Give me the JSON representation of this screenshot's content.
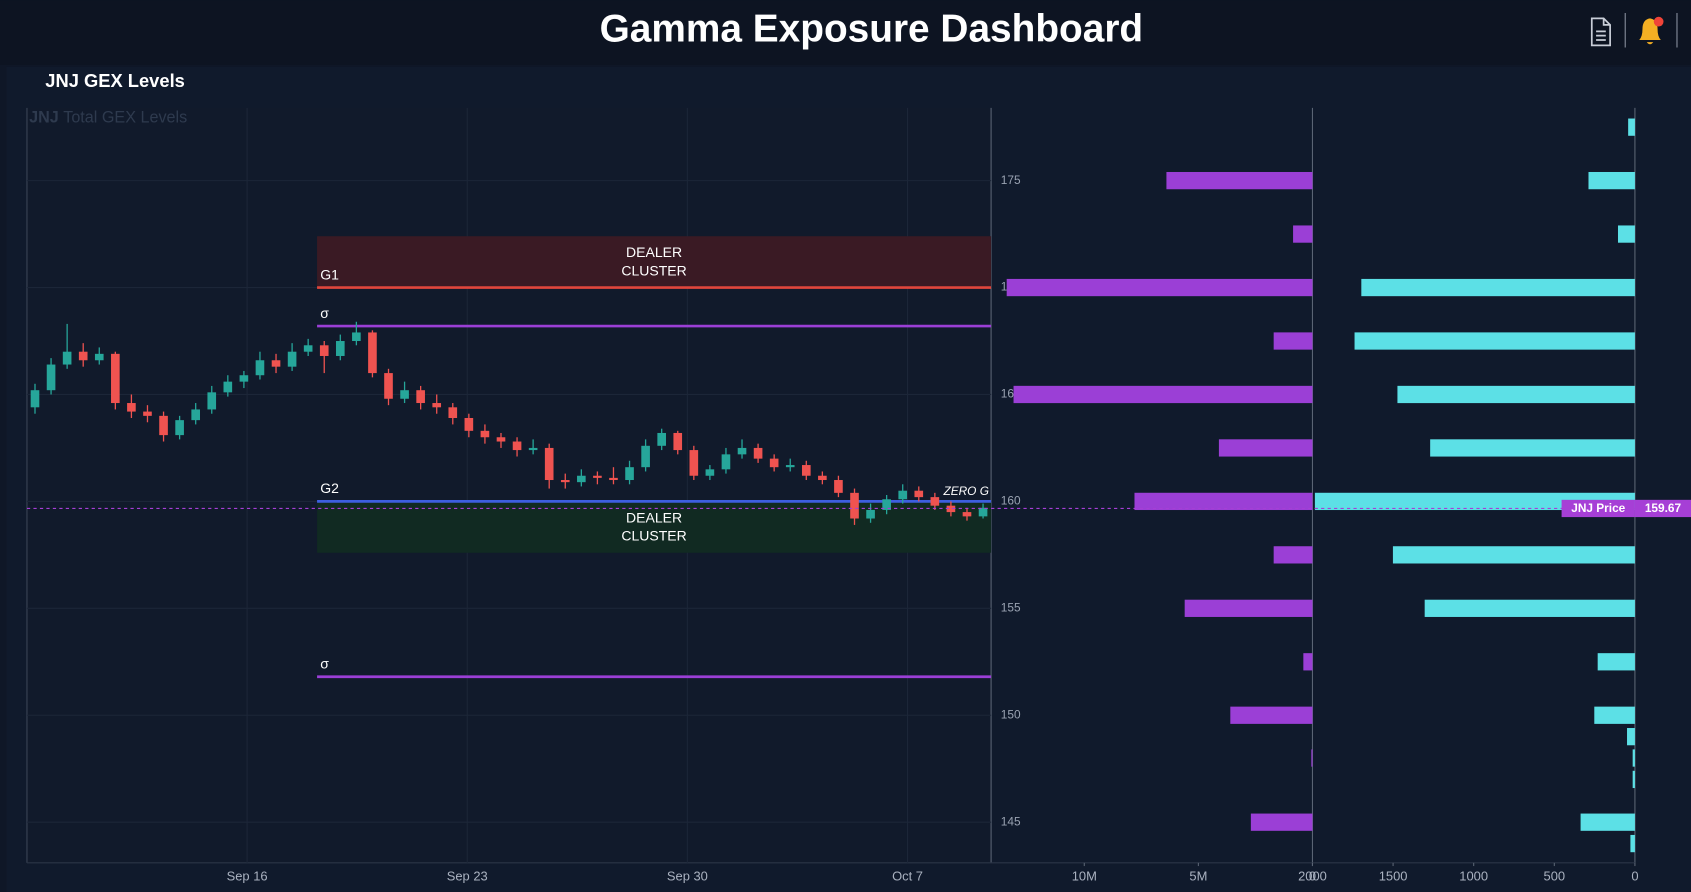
{
  "header": {
    "title": "Gamma Exposure Dashboard"
  },
  "panel": {
    "title": "JNJ GEX Levels"
  },
  "chart_data": [
    {
      "type": "candlestick",
      "ticker": "JNJ",
      "title": "Total GEX Levels",
      "up_color": "#26a69a",
      "down_color": "#ef5350",
      "candles": [
        [
          164.4,
          165.5,
          164.1,
          165.2
        ],
        [
          165.2,
          166.7,
          165.0,
          166.4
        ],
        [
          166.4,
          168.3,
          166.2,
          167.0
        ],
        [
          167.0,
          167.4,
          166.3,
          166.6
        ],
        [
          166.6,
          167.2,
          166.4,
          166.9
        ],
        [
          166.9,
          167.0,
          164.3,
          164.6
        ],
        [
          164.6,
          165.0,
          163.9,
          164.2
        ],
        [
          164.2,
          164.5,
          163.7,
          164.0
        ],
        [
          164.0,
          164.2,
          162.8,
          163.1
        ],
        [
          163.1,
          164.0,
          162.9,
          163.8
        ],
        [
          163.8,
          164.6,
          163.6,
          164.3
        ],
        [
          164.3,
          165.4,
          164.1,
          165.1
        ],
        [
          165.1,
          165.9,
          164.9,
          165.6
        ],
        [
          165.6,
          166.1,
          165.3,
          165.9
        ],
        [
          165.9,
          167.0,
          165.7,
          166.6
        ],
        [
          166.6,
          166.9,
          166.0,
          166.3
        ],
        [
          166.3,
          167.4,
          166.1,
          167.0
        ],
        [
          167.0,
          167.6,
          166.8,
          167.3
        ],
        [
          167.3,
          167.5,
          166.0,
          166.8
        ],
        [
          166.8,
          167.8,
          166.6,
          167.5
        ],
        [
          167.5,
          168.4,
          167.3,
          167.9
        ],
        [
          167.9,
          168.0,
          165.8,
          166.0
        ],
        [
          166.0,
          166.2,
          164.5,
          164.8
        ],
        [
          164.8,
          165.6,
          164.6,
          165.2
        ],
        [
          165.2,
          165.4,
          164.3,
          164.6
        ],
        [
          164.6,
          165.0,
          164.1,
          164.4
        ],
        [
          164.4,
          164.6,
          163.6,
          163.9
        ],
        [
          163.9,
          164.1,
          163.0,
          163.3
        ],
        [
          163.3,
          163.6,
          162.7,
          163.0
        ],
        [
          163.0,
          163.2,
          162.5,
          162.8
        ],
        [
          162.8,
          163.0,
          162.1,
          162.4
        ],
        [
          162.4,
          162.9,
          162.2,
          162.5
        ],
        [
          162.5,
          162.7,
          160.6,
          161.0
        ],
        [
          161.0,
          161.3,
          160.6,
          160.9
        ],
        [
          160.9,
          161.5,
          160.7,
          161.2
        ],
        [
          161.2,
          161.4,
          160.8,
          161.1
        ],
        [
          161.1,
          161.6,
          160.8,
          161.0
        ],
        [
          161.0,
          161.9,
          160.8,
          161.6
        ],
        [
          161.6,
          162.9,
          161.4,
          162.6
        ],
        [
          162.6,
          163.4,
          162.4,
          163.2
        ],
        [
          163.2,
          163.3,
          162.2,
          162.4
        ],
        [
          162.4,
          162.6,
          161.0,
          161.2
        ],
        [
          161.2,
          161.7,
          161.0,
          161.5
        ],
        [
          161.5,
          162.5,
          161.3,
          162.2
        ],
        [
          162.2,
          162.9,
          162.0,
          162.5
        ],
        [
          162.5,
          162.7,
          161.8,
          162.0
        ],
        [
          162.0,
          162.2,
          161.4,
          161.6
        ],
        [
          161.6,
          162.0,
          161.4,
          161.7
        ],
        [
          161.7,
          161.9,
          161.0,
          161.2
        ],
        [
          161.2,
          161.4,
          160.8,
          161.0
        ],
        [
          161.0,
          161.2,
          160.2,
          160.4
        ],
        [
          160.4,
          160.6,
          158.9,
          159.2
        ],
        [
          159.2,
          159.9,
          159.0,
          159.6
        ],
        [
          159.6,
          160.3,
          159.4,
          160.1
        ],
        [
          160.1,
          160.8,
          159.9,
          160.5
        ],
        [
          160.5,
          160.7,
          160.0,
          160.2
        ],
        [
          160.2,
          160.4,
          159.6,
          159.8
        ],
        [
          159.8,
          160.0,
          159.3,
          159.5
        ],
        [
          159.5,
          159.7,
          159.1,
          159.3
        ],
        [
          159.3,
          159.9,
          159.2,
          159.7
        ]
      ],
      "xlim": [
        0,
        60
      ],
      "xticks": [
        {
          "value": 13.7,
          "label": "Sep 16"
        },
        {
          "value": 27.4,
          "label": "Sep 23"
        },
        {
          "value": 41.1,
          "label": "Sep 30"
        },
        {
          "value": 54.8,
          "label": "Oct 7"
        }
      ],
      "ylim": [
        143.1,
        178.4
      ],
      "yticks": [
        145,
        150,
        155,
        160,
        165,
        170,
        175
      ],
      "grid": true,
      "zones": [
        {
          "lines": [
            "DEALER",
            "CLUSTER"
          ],
          "from": 170,
          "to": 172.4,
          "color": "#3a1a24"
        },
        {
          "lines": [
            "DEALER",
            "CLUSTER"
          ],
          "from": 157.6,
          "to": 160,
          "color": "#112a22"
        }
      ],
      "levels": [
        {
          "label": "G1",
          "value": 170,
          "color": "#e0463c"
        },
        {
          "label": "σ",
          "value": 168.2,
          "color": "#9b3fd6"
        },
        {
          "label": "G2",
          "value": 160,
          "color": "#3d5fe0",
          "note": "ZERO G"
        },
        {
          "label": "σ",
          "value": 151.8,
          "color": "#9b3fd6"
        }
      ],
      "price_line": {
        "label": "JNJ Price",
        "value": 159.67,
        "color": "#a63fd6"
      }
    },
    {
      "type": "hbar",
      "color": "#9b3fd6",
      "y": [
        177.5,
        175,
        172.5,
        170,
        167.5,
        165,
        162.5,
        160,
        157.5,
        155,
        152.5,
        150,
        149,
        148,
        147,
        145,
        144
      ],
      "values": [
        0,
        6400000,
        850000,
        13400000,
        1700000,
        13100000,
        4100000,
        7800000,
        1700000,
        5600000,
        400000,
        3600000,
        0,
        50000,
        0,
        2700000,
        0
      ],
      "xlim": [
        13800000,
        0
      ],
      "xticks": [
        {
          "value": 10000000,
          "label": "10M"
        },
        {
          "value": 5000000,
          "label": "5M"
        },
        0
      ]
    },
    {
      "type": "hbar",
      "color": "#5ce0e6",
      "y": [
        177.5,
        175,
        172.5,
        170,
        167.5,
        165,
        162.5,
        160,
        157.5,
        155,
        152.5,
        150,
        149,
        148,
        147,
        145,
        144
      ],
      "values": [
        42,
        288,
        105,
        1697,
        1739,
        1473,
        1270,
        1985,
        1501,
        1304,
        231,
        252,
        49,
        14,
        14,
        337,
        28
      ],
      "xlim": [
        2000,
        0
      ],
      "xticks": [
        2000,
        1500,
        1000,
        500,
        0
      ]
    }
  ]
}
